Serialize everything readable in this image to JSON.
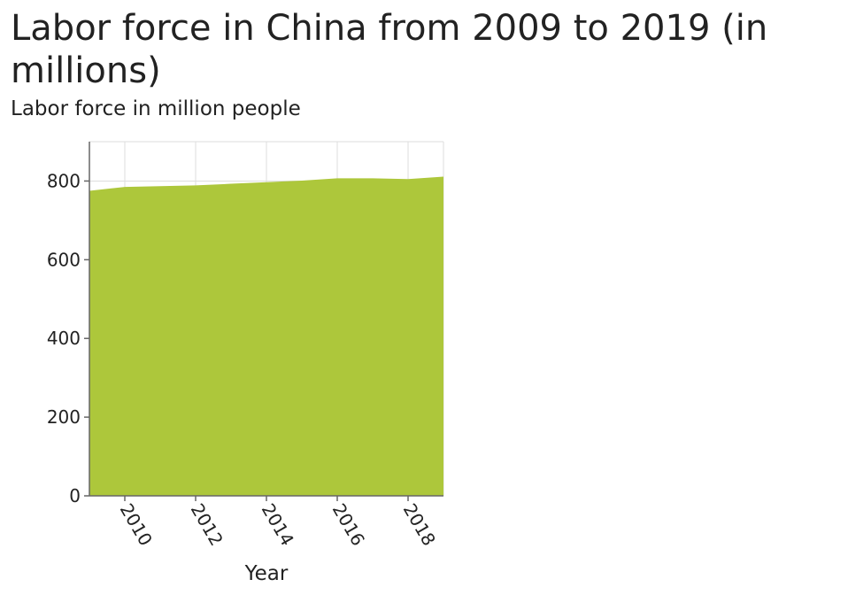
{
  "chart_data": {
    "type": "area",
    "title": "Labor force in China from 2009 to 2019 (in millions)",
    "ylabel": "Labor force in million people",
    "xlabel": "Year",
    "x": [
      2009,
      2010,
      2011,
      2012,
      2013,
      2014,
      2015,
      2016,
      2017,
      2018,
      2019
    ],
    "series": [
      {
        "name": "",
        "values": [
          775,
          785,
          787,
          789,
          793,
          797,
          801,
          807,
          807,
          805,
          811
        ]
      }
    ],
    "xlim": [
      2009,
      2019
    ],
    "ylim": [
      0,
      900
    ],
    "x_ticks": [
      "2010",
      "2012",
      "2014",
      "2016",
      "2018"
    ],
    "y_ticks": [
      "0",
      "200",
      "400",
      "600",
      "800"
    ],
    "grid": true,
    "legend": "none",
    "fill_color": "#adc73b"
  }
}
